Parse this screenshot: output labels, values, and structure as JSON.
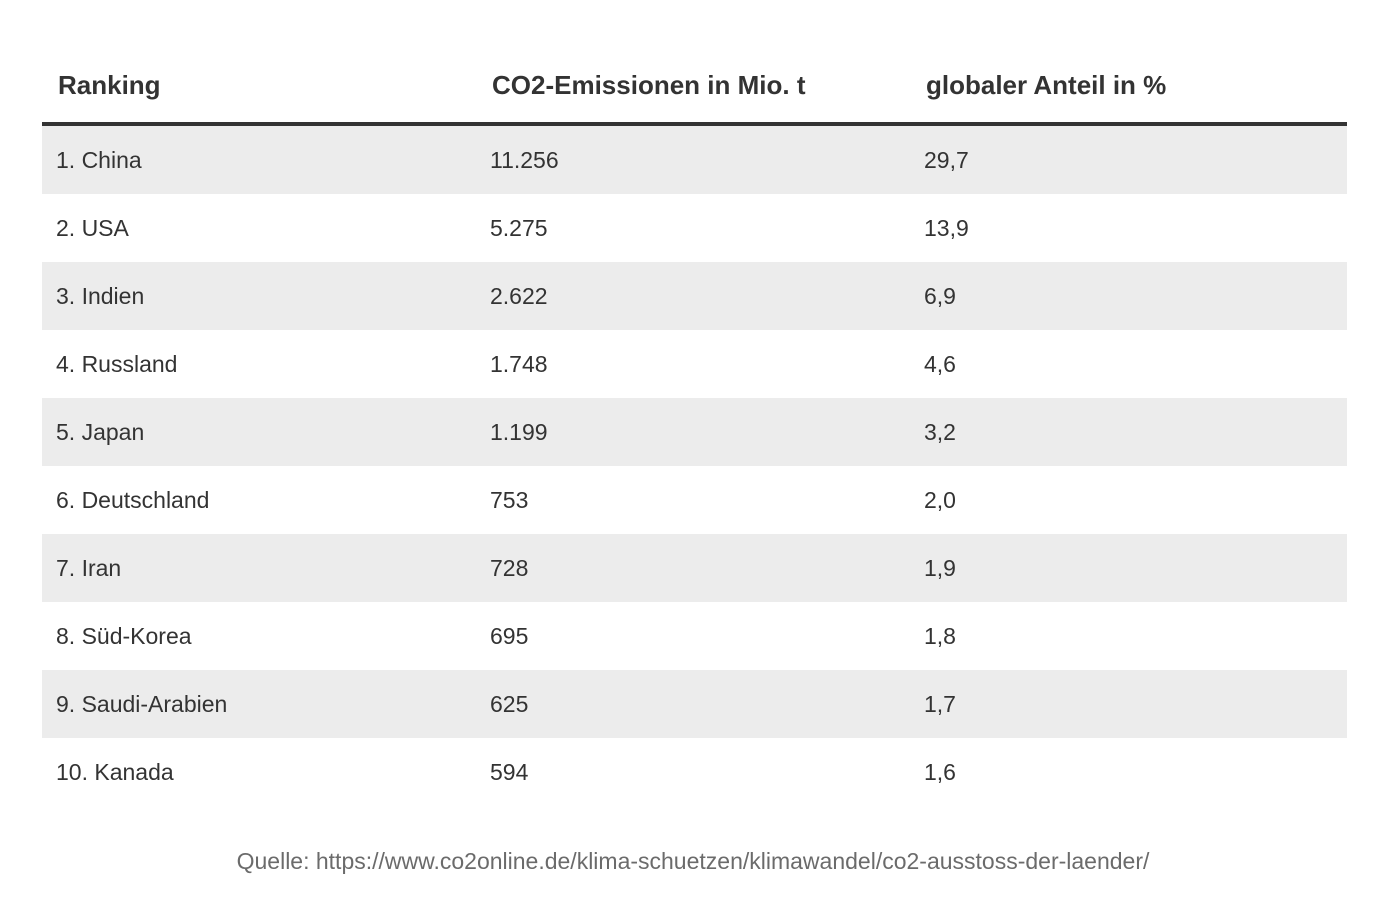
{
  "table": {
    "headers": [
      "Ranking",
      "CO2-Emissionen in Mio. t",
      "globaler Anteil in %"
    ],
    "rows": [
      [
        "1. China",
        "11.256",
        "29,7"
      ],
      [
        "2. USA",
        "5.275",
        "13,9"
      ],
      [
        "3. Indien",
        "2.622",
        "6,9"
      ],
      [
        "4. Russland",
        "1.748",
        "4,6"
      ],
      [
        "5. Japan",
        "1.199",
        "3,2"
      ],
      [
        "6. Deutschland",
        "753",
        "2,0"
      ],
      [
        "7. Iran",
        "728",
        "1,9"
      ],
      [
        "8. Süd-Korea",
        "695",
        "1,8"
      ],
      [
        "9. Saudi-Arabien",
        "625",
        "1,7"
      ],
      [
        "10. Kanada",
        "594",
        "1,6"
      ]
    ]
  },
  "source": "Quelle: https://www.co2online.de/klima-schuetzen/klimawandel/co2-ausstoss-der-laender/"
}
